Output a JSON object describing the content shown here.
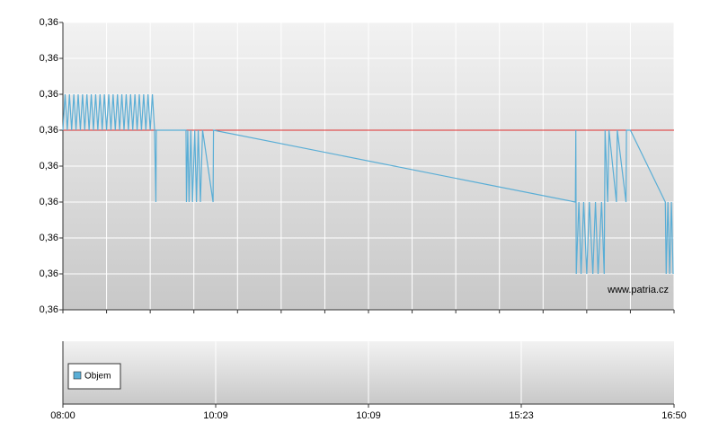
{
  "chart_data": [
    {
      "type": "line",
      "annotation": "www.patria.cz",
      "ylim": [
        0.356,
        0.36
      ],
      "yticks": [
        {
          "value": 0.356,
          "label": "0,36"
        },
        {
          "value": 0.3565,
          "label": "0,36"
        },
        {
          "value": 0.357,
          "label": "0,36"
        },
        {
          "value": 0.3575,
          "label": "0,36"
        },
        {
          "value": 0.358,
          "label": "0,36"
        },
        {
          "value": 0.3585,
          "label": "0,36"
        },
        {
          "value": 0.359,
          "label": "0,36"
        },
        {
          "value": 0.3595,
          "label": "0,36"
        },
        {
          "value": 0.36,
          "label": "0,36"
        }
      ],
      "xlim": [
        0,
        140
      ],
      "xticks": [
        0,
        10,
        20,
        30,
        40,
        50,
        60,
        70,
        80,
        90,
        100,
        110,
        120,
        130,
        140
      ],
      "grid": true,
      "reference_line": {
        "value": 0.3585,
        "color": "#e03030"
      },
      "series": [
        {
          "color": "#5aaed6",
          "x": [
            0,
            0.5,
            1,
            1.5,
            2,
            2.5,
            3,
            3.5,
            4,
            4.5,
            5,
            5.5,
            6,
            6.5,
            7,
            7.5,
            8,
            8.5,
            9,
            9.5,
            10,
            10.5,
            11,
            11.5,
            12,
            12.5,
            13,
            13.5,
            14,
            14.5,
            15,
            15.5,
            16,
            16.5,
            17,
            17.5,
            18,
            18.5,
            19,
            19.5,
            20,
            20.5,
            21,
            21.3,
            21.4,
            28.2,
            28.3,
            28.6,
            28.9,
            29.3,
            29.7,
            30.2,
            30.6,
            31,
            31.5,
            32,
            34.4,
            34.5,
            117.4,
            117.5,
            117.6,
            118.2,
            118.7,
            119.3,
            120,
            120.6,
            121.4,
            122,
            122.6,
            123.4,
            124,
            124.2,
            124.8,
            125.1,
            126.8,
            127,
            129,
            129.1,
            130,
            138,
            138.2,
            138.6,
            139,
            139.4,
            139.8
          ],
          "values": [
            0.3585,
            0.359,
            0.3585,
            0.359,
            0.3585,
            0.359,
            0.3585,
            0.359,
            0.3585,
            0.359,
            0.3585,
            0.359,
            0.3585,
            0.359,
            0.3585,
            0.359,
            0.3585,
            0.359,
            0.3585,
            0.359,
            0.3585,
            0.359,
            0.3585,
            0.359,
            0.3585,
            0.359,
            0.3585,
            0.359,
            0.3585,
            0.359,
            0.3585,
            0.359,
            0.3585,
            0.359,
            0.3585,
            0.359,
            0.3585,
            0.359,
            0.3585,
            0.359,
            0.3585,
            0.359,
            0.3585,
            0.3575,
            0.3585,
            0.3585,
            0.3575,
            0.3585,
            0.3575,
            0.3585,
            0.3575,
            0.3585,
            0.3575,
            0.3585,
            0.3575,
            0.3585,
            0.3575,
            0.3585,
            0.3575,
            0.3585,
            0.3565,
            0.3575,
            0.3565,
            0.3575,
            0.3565,
            0.3575,
            0.3565,
            0.3575,
            0.3565,
            0.3575,
            0.3565,
            0.3585,
            0.3575,
            0.3585,
            0.3575,
            0.3585,
            0.3575,
            0.3585,
            0.3585,
            0.3575,
            0.3565,
            0.3575,
            0.3565,
            0.3575,
            0.3565
          ]
        }
      ]
    },
    {
      "type": "bar",
      "xlim": [
        0,
        140
      ],
      "xticks": [
        {
          "value": 0,
          "label": "08:00"
        },
        {
          "value": 35,
          "label": "10:09"
        },
        {
          "value": 70,
          "label": "10:09"
        },
        {
          "value": 105,
          "label": "15:23"
        },
        {
          "value": 140,
          "label": "16:50"
        }
      ],
      "grid": true,
      "series": [
        {
          "name": "Objem",
          "color": "#5aaed6",
          "values": []
        }
      ]
    }
  ]
}
